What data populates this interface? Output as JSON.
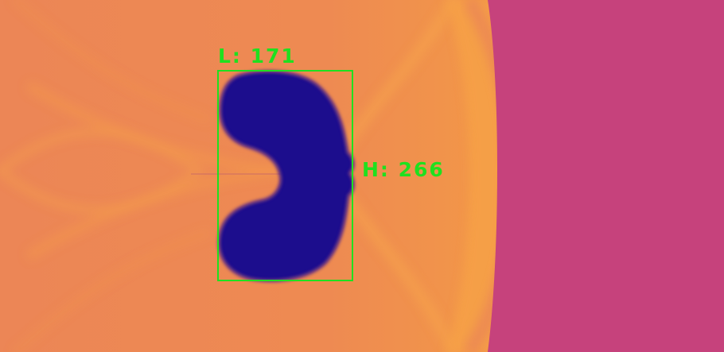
{
  "annotations": {
    "length_label": "L: 171",
    "height_label": "H: 266"
  },
  "colors": {
    "background_orange": "#ea8455",
    "bright_orange": "#f6a04a",
    "magenta_region": "#c6427c",
    "blob": "#1e078d",
    "annotation": "#1fe01f"
  }
}
